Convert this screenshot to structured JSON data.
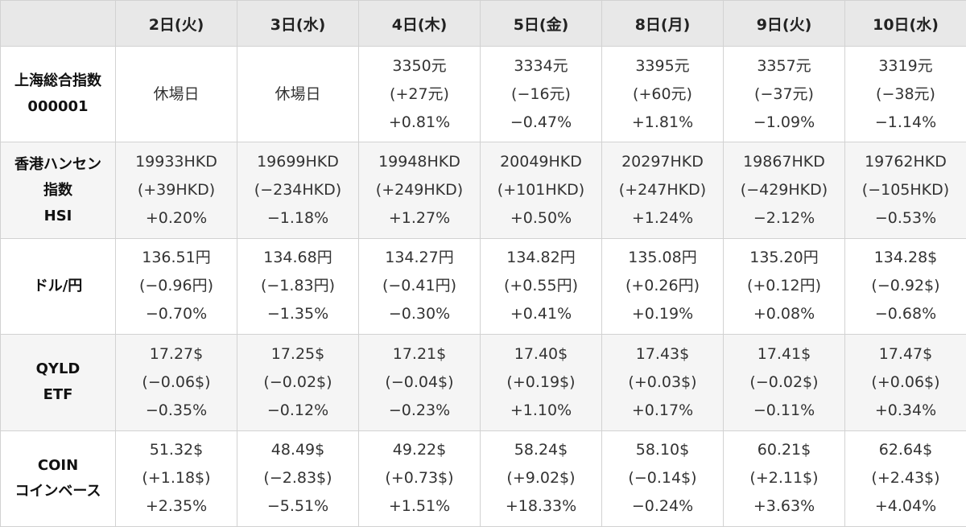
{
  "colors": {
    "up": "#c9503f",
    "down": "#3a74a6",
    "header_bg": "#e8e8e8",
    "stripe_bg": "#f5f5f5"
  },
  "table": {
    "corner": "",
    "columns": [
      "2日(火)",
      "3日(水)",
      "4日(木)",
      "5日(金)",
      "8日(月)",
      "9日(火)",
      "10日(水)"
    ],
    "rows": [
      {
        "label": [
          "上海総合指数",
          "000001"
        ],
        "cells": [
          {
            "dir": "none",
            "lines": [
              "休場日"
            ]
          },
          {
            "dir": "none",
            "lines": [
              "休場日"
            ]
          },
          {
            "dir": "up",
            "lines": [
              "3350元",
              "(+27元)",
              "+0.81%"
            ]
          },
          {
            "dir": "down",
            "lines": [
              "3334元",
              "(−16元)",
              "−0.47%"
            ]
          },
          {
            "dir": "up",
            "lines": [
              "3395元",
              "(+60元)",
              "+1.81%"
            ]
          },
          {
            "dir": "down",
            "lines": [
              "3357元",
              "(−37元)",
              "−1.09%"
            ]
          },
          {
            "dir": "down",
            "lines": [
              "3319元",
              "(−38元)",
              "−1.14%"
            ]
          }
        ]
      },
      {
        "label": [
          "香港ハンセン",
          "指数",
          "HSI"
        ],
        "cells": [
          {
            "dir": "up",
            "lines": [
              "19933HKD",
              "(+39HKD)",
              "+0.20%"
            ]
          },
          {
            "dir": "down",
            "lines": [
              "19699HKD",
              "(−234HKD)",
              "−1.18%"
            ]
          },
          {
            "dir": "up",
            "lines": [
              "19948HKD",
              "(+249HKD)",
              "+1.27%"
            ]
          },
          {
            "dir": "up",
            "lines": [
              "20049HKD",
              "(+101HKD)",
              "+0.50%"
            ]
          },
          {
            "dir": "up",
            "lines": [
              "20297HKD",
              "(+247HKD)",
              "+1.24%"
            ]
          },
          {
            "dir": "down",
            "lines": [
              "19867HKD",
              "(−429HKD)",
              "−2.12%"
            ]
          },
          {
            "dir": "down",
            "lines": [
              "19762HKD",
              "(−105HKD)",
              "−0.53%"
            ]
          }
        ]
      },
      {
        "label": [
          "ドル/円"
        ],
        "cells": [
          {
            "dir": "down",
            "lines": [
              "136.51円",
              "(−0.96円)",
              "−0.70%"
            ]
          },
          {
            "dir": "down",
            "lines": [
              "134.68円",
              "(−1.83円)",
              "−1.35%"
            ]
          },
          {
            "dir": "down",
            "lines": [
              "134.27円",
              "(−0.41円)",
              "−0.30%"
            ]
          },
          {
            "dir": "up",
            "lines": [
              "134.82円",
              "(+0.55円)",
              "+0.41%"
            ]
          },
          {
            "dir": "up",
            "lines": [
              "135.08円",
              "(+0.26円)",
              "+0.19%"
            ]
          },
          {
            "dir": "up",
            "lines": [
              "135.20円",
              "(+0.12円)",
              "+0.08%"
            ]
          },
          {
            "dir": "down",
            "lines": [
              "134.28$",
              "(−0.92$)",
              "−0.68%"
            ]
          }
        ]
      },
      {
        "label": [
          "QYLD",
          "ETF"
        ],
        "cells": [
          {
            "dir": "down",
            "lines": [
              "17.27$",
              "(−0.06$)",
              "−0.35%"
            ]
          },
          {
            "dir": "down",
            "lines": [
              "17.25$",
              "(−0.02$)",
              "−0.12%"
            ]
          },
          {
            "dir": "down",
            "lines": [
              "17.21$",
              "(−0.04$)",
              "−0.23%"
            ]
          },
          {
            "dir": "up",
            "lines": [
              "17.40$",
              "(+0.19$)",
              "+1.10%"
            ]
          },
          {
            "dir": "up",
            "lines": [
              "17.43$",
              "(+0.03$)",
              "+0.17%"
            ]
          },
          {
            "dir": "down",
            "lines": [
              "17.41$",
              "(−0.02$)",
              "−0.11%"
            ]
          },
          {
            "dir": "up",
            "lines": [
              "17.47$",
              "(+0.06$)",
              "+0.34%"
            ]
          }
        ]
      },
      {
        "label": [
          "COIN",
          "コインベース"
        ],
        "cells": [
          {
            "dir": "up",
            "lines": [
              "51.32$",
              "(+1.18$)",
              "+2.35%"
            ]
          },
          {
            "dir": "down",
            "lines": [
              "48.49$",
              "(−2.83$)",
              "−5.51%"
            ]
          },
          {
            "dir": "up",
            "lines": [
              "49.22$",
              "(+0.73$)",
              "+1.51%"
            ]
          },
          {
            "dir": "up",
            "lines": [
              "58.24$",
              "(+9.02$)",
              "+18.33%"
            ]
          },
          {
            "dir": "down",
            "lines": [
              "58.10$",
              "(−0.14$)",
              "−0.24%"
            ]
          },
          {
            "dir": "up",
            "lines": [
              "60.21$",
              "(+2.11$)",
              "+3.63%"
            ]
          },
          {
            "dir": "up",
            "lines": [
              "62.64$",
              "(+2.43$)",
              "+4.04%"
            ]
          }
        ]
      }
    ]
  }
}
